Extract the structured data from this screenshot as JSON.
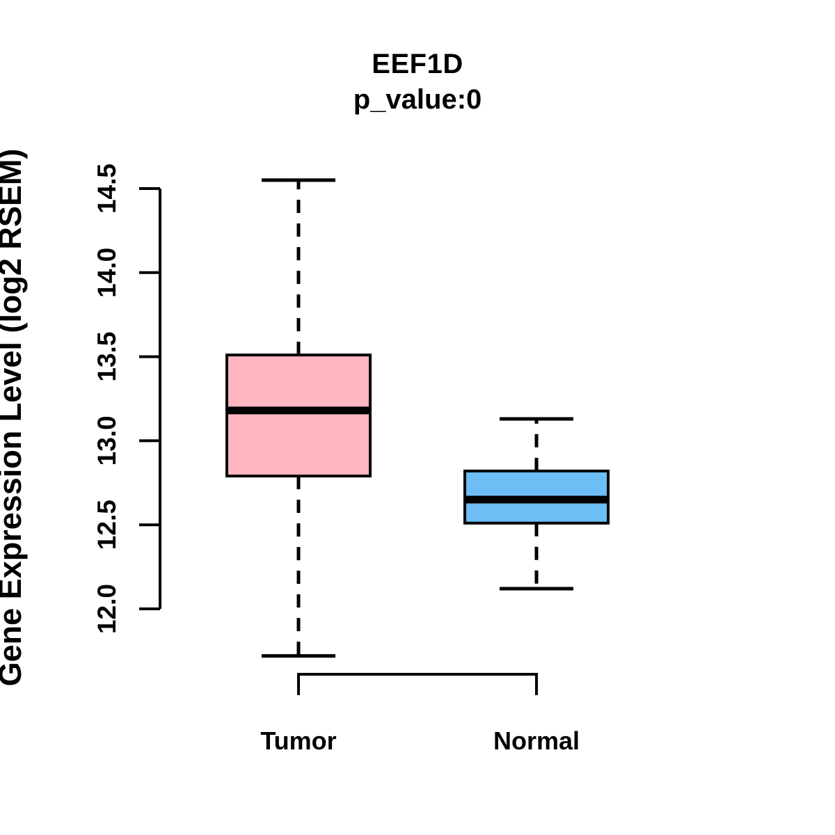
{
  "title": "EEF1D",
  "subtitle": "p_value:0",
  "chart_data": {
    "type": "boxplot",
    "title": "EEF1D",
    "subtitle": "p_value:0",
    "ylabel": "Gene Expression Level (log2 RSEM)",
    "xlabel": "",
    "categories": [
      "Tumor",
      "Normal"
    ],
    "y_ticks": [
      12.0,
      12.5,
      13.0,
      13.5,
      14.0,
      14.5
    ],
    "y_tick_labels": [
      "12.0",
      "12.5",
      "13.0",
      "13.5",
      "14.0",
      "14.5"
    ],
    "axis_range": [
      12.0,
      14.5
    ],
    "grid": false,
    "legend": false,
    "whisker_style": "dashed",
    "series": [
      {
        "name": "Tumor",
        "color": "#FFB6C1",
        "min": 11.72,
        "q1": 12.79,
        "median": 13.18,
        "q3": 13.51,
        "max": 14.55
      },
      {
        "name": "Normal",
        "color": "#6CBEF5",
        "min": 12.12,
        "q1": 12.51,
        "median": 12.65,
        "q3": 12.82,
        "max": 13.13
      }
    ]
  },
  "colors": {
    "tumor_fill": "#FFB6C1",
    "normal_fill": "#6CBEF5",
    "line": "#000000",
    "background": "#FFFFFF"
  }
}
